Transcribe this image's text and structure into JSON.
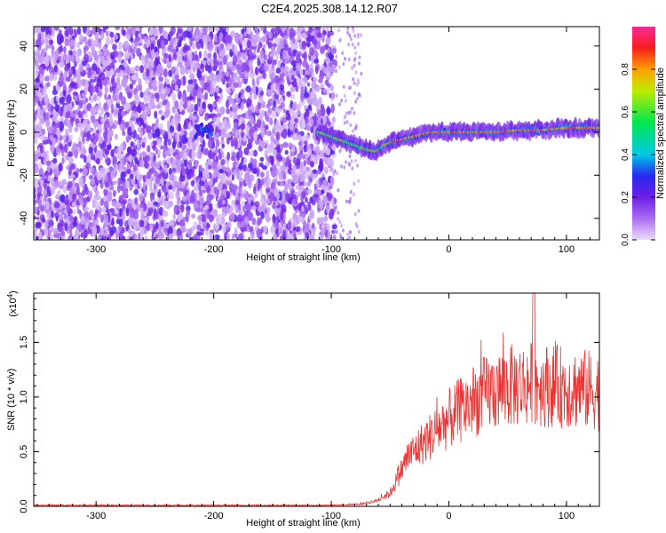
{
  "title": "C2E4.2025.308.14.12.R07",
  "chart_data": [
    {
      "type": "heatmap",
      "title": "C2E4.2025.308.14.12.R07",
      "xlabel": "Height of straight line (km)",
      "ylabel": "Frequency (Hz)",
      "xlim": [
        -353,
        128
      ],
      "ylim": [
        -50,
        49
      ],
      "xticks": [
        -300,
        -200,
        -100,
        0,
        100
      ],
      "yticks": [
        -40,
        -20,
        0,
        20,
        40
      ],
      "noise_region_x": [
        -353,
        -97
      ],
      "signal_ridge": [
        {
          "x": -110,
          "f": 0
        },
        {
          "x": -100,
          "f": -2
        },
        {
          "x": -90,
          "f": -4
        },
        {
          "x": -80,
          "f": -6
        },
        {
          "x": -70,
          "f": -8
        },
        {
          "x": -62,
          "f": -9
        },
        {
          "x": -55,
          "f": -6
        },
        {
          "x": -45,
          "f": -4
        },
        {
          "x": -30,
          "f": -2
        },
        {
          "x": -15,
          "f": 0
        },
        {
          "x": 0,
          "f": 0
        },
        {
          "x": 20,
          "f": 0
        },
        {
          "x": 40,
          "f": 0
        },
        {
          "x": 60,
          "f": 1
        },
        {
          "x": 80,
          "f": 1
        },
        {
          "x": 100,
          "f": 2
        },
        {
          "x": 128,
          "f": 2
        }
      ],
      "colorbar": {
        "label": "Normalized spectral amplitude",
        "range": [
          0,
          1
        ],
        "ticks": [
          "0.0",
          "0.2",
          "0.4",
          "0.6",
          "0.8"
        ]
      }
    },
    {
      "type": "line",
      "xlabel": "Height of straight line (km)",
      "ylabel": "SNR (10 * v/v)",
      "multiplier": "(x10",
      "multiplier_exp": "4",
      "multiplier_close": ")",
      "xlim": [
        -353,
        128
      ],
      "ylim": [
        0,
        1.95
      ],
      "xticks": [
        -300,
        -200,
        -100,
        0,
        100
      ],
      "yticks": [
        "0.0",
        "0.5",
        "1.0",
        "1.5"
      ],
      "series_color": "#ee3333",
      "envelope": [
        {
          "x": -353,
          "y": 0.01
        },
        {
          "x": -100,
          "y": 0.01
        },
        {
          "x": -75,
          "y": 0.02
        },
        {
          "x": -62,
          "y": 0.05
        },
        {
          "x": -50,
          "y": 0.12
        },
        {
          "x": -42,
          "y": 0.3
        },
        {
          "x": -35,
          "y": 0.45
        },
        {
          "x": -25,
          "y": 0.55
        },
        {
          "x": -10,
          "y": 0.7
        },
        {
          "x": 0,
          "y": 0.8
        },
        {
          "x": 15,
          "y": 0.92
        },
        {
          "x": 30,
          "y": 1.02
        },
        {
          "x": 50,
          "y": 1.1
        },
        {
          "x": 70,
          "y": 1.12
        },
        {
          "x": 90,
          "y": 1.1
        },
        {
          "x": 110,
          "y": 1.08
        },
        {
          "x": 128,
          "y": 1.05
        }
      ]
    }
  ]
}
